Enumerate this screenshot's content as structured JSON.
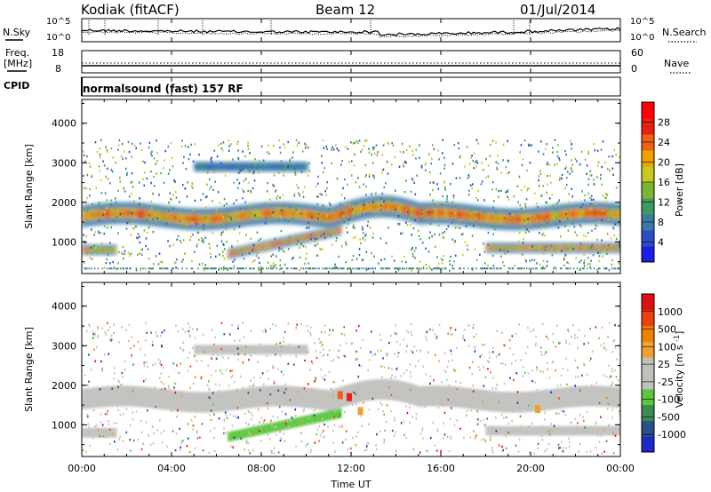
{
  "header": {
    "station": "Kodiak (fitACF)",
    "beam": "Beam 12",
    "date": "01/Jul/2014"
  },
  "top_panel": {
    "left_label": "N.Sky",
    "right_label": "N.Search",
    "left_ticks": [
      "10^5",
      "10^0"
    ],
    "right_ticks": [
      "10^5",
      "10^0"
    ]
  },
  "freq_panel": {
    "left_label_line1": "Freq.",
    "left_label_line2": "[MHz]",
    "right_label": "Nave",
    "left_ticks": [
      "18",
      "8"
    ],
    "right_ticks": [
      "60",
      "0"
    ]
  },
  "cpid_panel": {
    "label": "CPID",
    "text": "normalsound (fast) 157 RF"
  },
  "colors": {
    "scatter_gray": "#c0c0bc",
    "velocity_green": "#5ac83c"
  },
  "chart_data": [
    {
      "type": "heatmap",
      "title": "",
      "xlabel": "",
      "ylabel": "Slant Range [km]",
      "xlim": [
        0,
        24
      ],
      "ylim": [
        200,
        4600
      ],
      "y_ticks": [
        "4000",
        "3000",
        "2000",
        "1000"
      ],
      "colorbar": {
        "label": "Power [dB]",
        "tick_labels": [
          "28",
          "24",
          "20",
          "16",
          "12",
          "8",
          "4"
        ],
        "colors": [
          "#1e1ee6",
          "#2a4cc8",
          "#3a7aa8",
          "#3e9a62",
          "#7ab430",
          "#c8c820",
          "#f0a000",
          "#f06010",
          "#e82010",
          "#ff0000"
        ]
      },
      "features": [
        {
          "name": "band_1700",
          "start_hr": 0,
          "end_hr": 24,
          "range_km": 1650,
          "peak_db": 28
        },
        {
          "name": "band_low_eve",
          "start_hr": 6.5,
          "end_hr": 11.5,
          "range_km": 700,
          "peak_db": 28
        },
        {
          "name": "band_800",
          "start_hr": 0,
          "end_hr": 1.5,
          "range_km": 800,
          "peak_db": 26
        },
        {
          "name": "band_850_late",
          "start_hr": 18,
          "end_hr": 24,
          "range_km": 850,
          "peak_db": 26
        },
        {
          "name": "band_high",
          "start_hr": 5,
          "end_hr": 10,
          "range_km": 2900,
          "peak_db": 10
        }
      ]
    },
    {
      "type": "heatmap",
      "title": "",
      "xlabel": "Time UT",
      "ylabel": "Slant Range [km]",
      "xlim": [
        0,
        24
      ],
      "ylim": [
        200,
        4600
      ],
      "x_ticks": [
        "00:00",
        "04:00",
        "08:00",
        "12:00",
        "16:00",
        "20:00",
        "00:00"
      ],
      "y_ticks": [
        "4000",
        "3000",
        "2000",
        "1000"
      ],
      "colorbar": {
        "label": "Velocity",
        "unit": "[m s",
        "unit_exp": "-1",
        "unit_end": "]",
        "tick_labels": [
          "1000",
          "500",
          "100",
          "25",
          "-25",
          "-100",
          "-500",
          "-1000"
        ],
        "colors": [
          "#1e28c8",
          "#28508c",
          "#3c8c50",
          "#5ac83c",
          "#c0c0bc",
          "#c0c0bc",
          "#f0a030",
          "#f08000",
          "#f04010",
          "#e01010"
        ]
      },
      "features": [
        {
          "name": "gray_band_1700",
          "start_hr": 0,
          "end_hr": 24,
          "range_km": 1700,
          "velocity": 0
        },
        {
          "name": "green_patch",
          "start_hr": 6.5,
          "end_hr": 11,
          "range_km": 650,
          "velocity": 120
        }
      ]
    }
  ]
}
